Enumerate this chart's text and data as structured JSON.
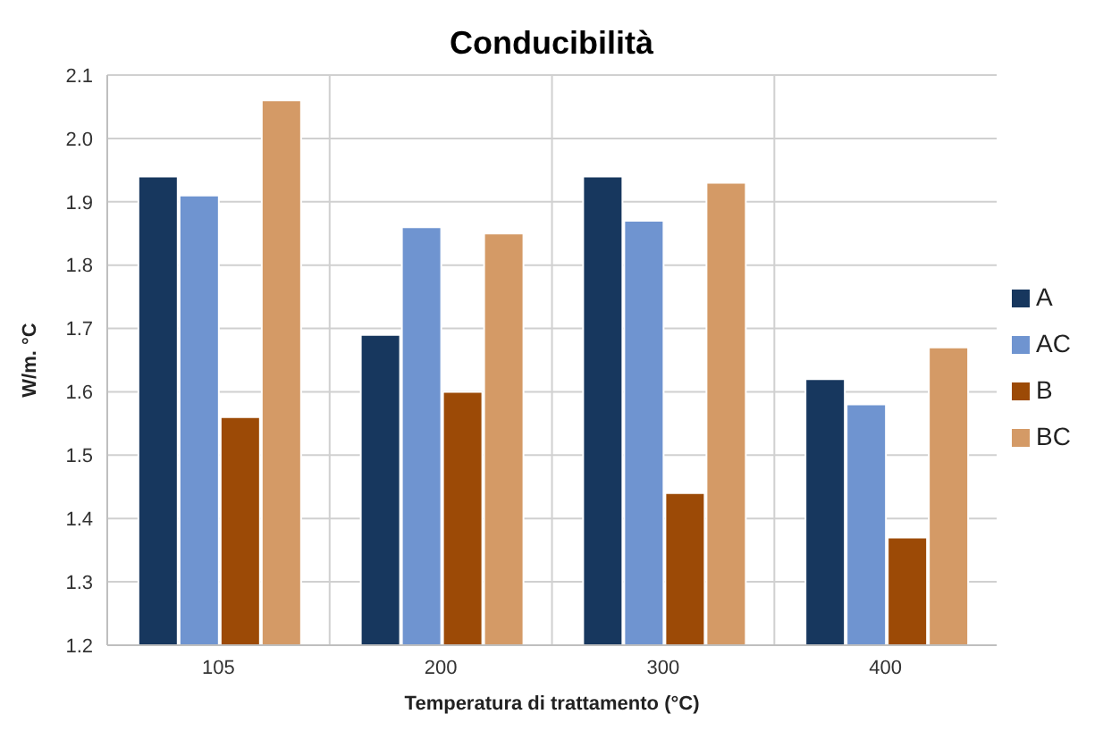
{
  "chart_data": {
    "type": "bar",
    "title": "Conducibilità",
    "xlabel": "Temperatura di trattamento (°C)",
    "ylabel": "W/m. °C",
    "categories": [
      "105",
      "200",
      "300",
      "400"
    ],
    "series": [
      {
        "name": "A",
        "color": "#17375e",
        "values": [
          1.94,
          1.69,
          1.94,
          1.62
        ]
      },
      {
        "name": "AC",
        "color": "#6f94d0",
        "values": [
          1.91,
          1.86,
          1.87,
          1.58
        ]
      },
      {
        "name": "B",
        "color": "#9c4a06",
        "values": [
          1.56,
          1.6,
          1.44,
          1.37
        ]
      },
      {
        "name": "BC",
        "color": "#d49a66",
        "values": [
          2.06,
          1.85,
          1.93,
          1.67
        ]
      }
    ],
    "ylim": [
      1.2,
      2.1
    ],
    "yticks": [
      1.2,
      1.3,
      1.4,
      1.5,
      1.6,
      1.7,
      1.8,
      1.9,
      {
        "value": 2.0,
        "label": "2.0"
      },
      2.1
    ],
    "grid": true,
    "legend": "right"
  }
}
